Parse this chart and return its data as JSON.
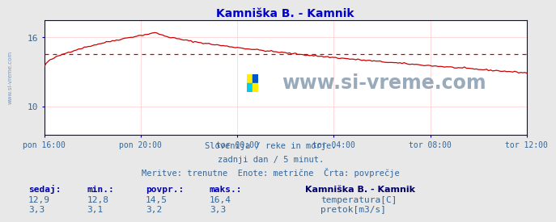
{
  "title": "Kamniška B. - Kamnik",
  "title_color": "#0000cc",
  "bg_color": "#e8e8e8",
  "plot_bg_color": "#ffffff",
  "grid_color": "#ffcccc",
  "grid_color_minor": "#ffeeee",
  "border_color": "#0000aa",
  "tick_color": "#336699",
  "x_ticks": [
    "pon 16:00",
    "pon 20:00",
    "tor 00:00",
    "tor 04:00",
    "tor 08:00",
    "tor 12:00"
  ],
  "x_tick_positions": [
    0,
    240,
    480,
    720,
    960,
    1200
  ],
  "total_minutes": 1200,
  "y_min": 7.5,
  "y_max": 17.5,
  "y_ticks": [
    10,
    16
  ],
  "avg_line_value": 14.5,
  "avg_line_color": "#cc0000",
  "temp_color": "#cc0000",
  "flow_color": "#00aa00",
  "watermark_text": "www.si-vreme.com",
  "watermark_color": "#99aabb",
  "info_line1": "Slovenija / reke in morje.",
  "info_line2": "zadnji dan / 5 minut.",
  "info_line3": "Meritve: trenutne  Enote: metrične  Črta: povprečje",
  "info_color": "#336699",
  "legend_title": "Kamniška B. - Kamnik",
  "legend_color": "#336699",
  "table_headers": [
    "sedaj:",
    "min.:",
    "povpr.:",
    "maks.:"
  ],
  "table_data": [
    [
      "12,9",
      "12,8",
      "14,5",
      "16,4"
    ],
    [
      "3,3",
      "3,1",
      "3,2",
      "3,3"
    ]
  ],
  "legend_items": [
    "temperatura[C]",
    "pretok[m3/s]"
  ],
  "legend_item_colors": [
    "#cc0000",
    "#00bb00"
  ],
  "side_text": "www.si-vreme.com",
  "side_text_color": "#7799bb"
}
